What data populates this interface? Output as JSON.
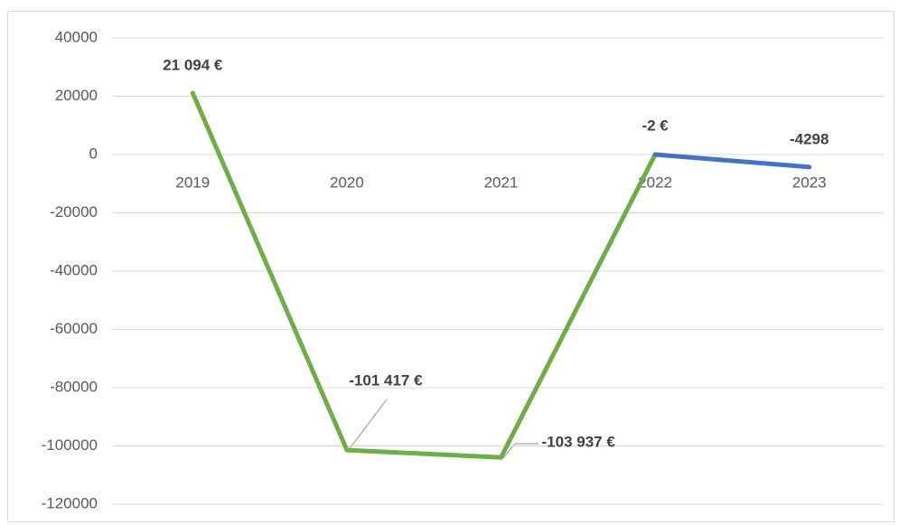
{
  "chart_data": {
    "type": "line",
    "categories": [
      "2019",
      "2020",
      "2021",
      "2022",
      "2023"
    ],
    "series": [
      {
        "color": "#70ad47",
        "values": [
          21094,
          -101417,
          -103937,
          -2,
          null
        ],
        "value_labels": [
          "21 094 €",
          "-101 417 €",
          "-103 937 €",
          "-2 €",
          null
        ]
      },
      {
        "color": "#4472c4",
        "values": [
          null,
          null,
          null,
          -2,
          -4298
        ],
        "value_labels": [
          null,
          null,
          null,
          null,
          "-4298"
        ]
      }
    ],
    "ylim": [
      -120000,
      40000
    ],
    "yticks": [
      -120000,
      -100000,
      -80000,
      -60000,
      -40000,
      -20000,
      0,
      20000,
      40000
    ],
    "grid": true
  }
}
